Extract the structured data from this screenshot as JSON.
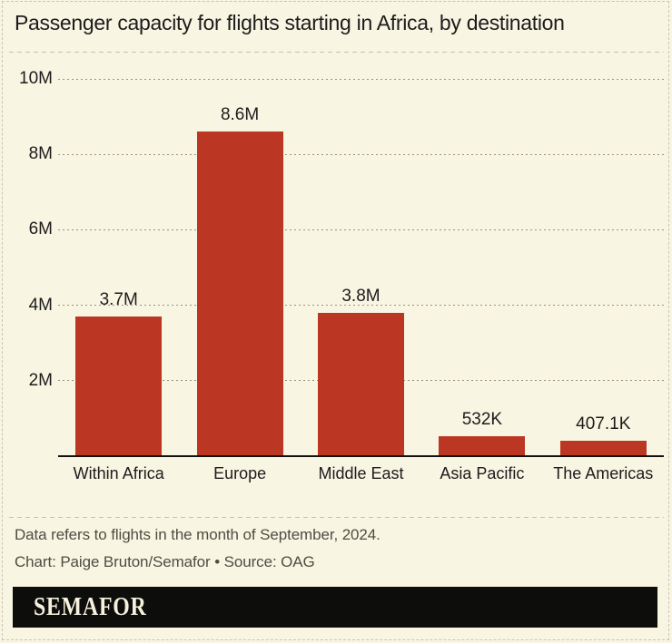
{
  "title": "Passenger capacity for flights starting in Africa, by destination",
  "chart_data": {
    "type": "bar",
    "title": "Passenger capacity for flights starting in Africa, by destination",
    "categories": [
      "Within Africa",
      "Europe",
      "Middle East",
      "Asia Pacific",
      "The Americas"
    ],
    "values_millions": [
      3.7,
      8.6,
      3.8,
      0.532,
      0.4071
    ],
    "bar_labels": [
      "3.7M",
      "8.6M",
      "3.8M",
      "532K",
      "407.1K"
    ],
    "ylabel": "",
    "xlabel": "",
    "ylim": [
      0,
      10
    ],
    "yticks": [
      {
        "value": 2,
        "label": "2M"
      },
      {
        "value": 4,
        "label": "4M"
      },
      {
        "value": 6,
        "label": "6M"
      },
      {
        "value": 8,
        "label": "8M"
      },
      {
        "value": 10,
        "label": "10M"
      }
    ],
    "grid": "horizontal-dotted",
    "legend": "none"
  },
  "footnote": "Data refers to flights in the month of September, 2024.",
  "credit": "Chart: Paige Bruton/Semafor • Source: OAG",
  "logo": {
    "text": "SEMAFOR"
  },
  "colors": {
    "background": "#f9f5e3",
    "bar": "#bc3624",
    "text": "#1c1c1c",
    "muted_text": "#504c43",
    "grid": "#97937f",
    "separator": "#c6c2b2",
    "axis": "#121212",
    "logo_background": "#0d0d0c",
    "logo_text": "#f6f1dd"
  }
}
